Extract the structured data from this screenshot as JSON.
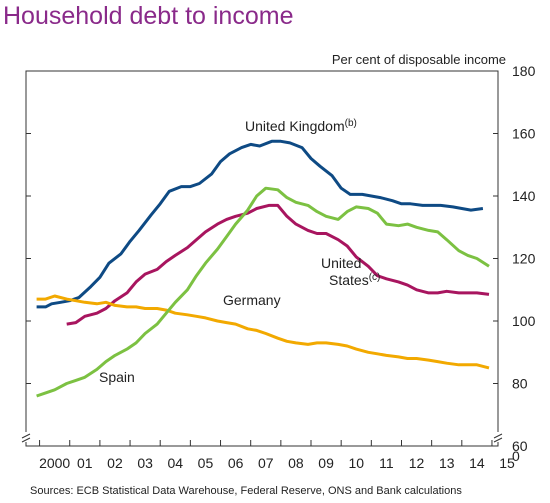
{
  "chart_data": {
    "type": "line",
    "title": "Household debt to income",
    "unit_label": "Per cent of disposable income",
    "source": "Sources: ECB Statistical Data Warehouse, Federal Reserve, ONS and Bank calculations",
    "x_tick_labels": [
      "2000",
      "01",
      "02",
      "03",
      "04",
      "05",
      "06",
      "07",
      "08",
      "09",
      "10",
      "11",
      "12",
      "13",
      "14",
      "15"
    ],
    "y_ticks": [
      180,
      160,
      140,
      120,
      100,
      80,
      60
    ],
    "y_axis_zero_label": "0",
    "ylim": [
      60,
      180
    ],
    "xlim": [
      1999.55,
      2015.2
    ],
    "axis_side": "right",
    "grid": false,
    "series": [
      {
        "name": "United Kingdom",
        "label_suffix": "(b)",
        "color": "#0e4a84",
        "points": [
          [
            1999.9,
            104.5
          ],
          [
            2000.2,
            104.5
          ],
          [
            2000.4,
            105.5
          ],
          [
            2000.7,
            106
          ],
          [
            2001.0,
            106.5
          ],
          [
            2001.3,
            107.5
          ],
          [
            2001.7,
            111
          ],
          [
            2002.0,
            114
          ],
          [
            2002.3,
            118.5
          ],
          [
            2002.7,
            121.5
          ],
          [
            2003.0,
            125.5
          ],
          [
            2003.3,
            129
          ],
          [
            2003.7,
            134
          ],
          [
            2004.0,
            137.5
          ],
          [
            2004.3,
            141.5
          ],
          [
            2004.7,
            143
          ],
          [
            2005.0,
            143
          ],
          [
            2005.3,
            144
          ],
          [
            2005.7,
            147
          ],
          [
            2006.0,
            151
          ],
          [
            2006.3,
            153.5
          ],
          [
            2006.7,
            155.5
          ],
          [
            2007.0,
            156.5
          ],
          [
            2007.3,
            156
          ],
          [
            2007.7,
            157.5
          ],
          [
            2008.0,
            157.5
          ],
          [
            2008.3,
            157
          ],
          [
            2008.7,
            155.5
          ],
          [
            2009.0,
            152
          ],
          [
            2009.3,
            149.5
          ],
          [
            2009.7,
            146.5
          ],
          [
            2010.0,
            142.5
          ],
          [
            2010.3,
            140.5
          ],
          [
            2010.7,
            140.5
          ],
          [
            2011.0,
            140
          ],
          [
            2011.3,
            139.5
          ],
          [
            2011.7,
            138.5
          ],
          [
            2012.0,
            137.5
          ],
          [
            2012.3,
            137.5
          ],
          [
            2012.7,
            137
          ],
          [
            2013.0,
            137
          ],
          [
            2013.3,
            137
          ],
          [
            2013.7,
            136.5
          ],
          [
            2014.0,
            136
          ],
          [
            2014.3,
            135.5
          ],
          [
            2014.7,
            136
          ]
        ]
      },
      {
        "name": "United States",
        "label_suffix": "(c)",
        "color": "#a8155f",
        "points": [
          [
            2000.9,
            99
          ],
          [
            2001.2,
            99.5
          ],
          [
            2001.5,
            101.5
          ],
          [
            2001.9,
            102.5
          ],
          [
            2002.2,
            104
          ],
          [
            2002.5,
            106.5
          ],
          [
            2002.9,
            109
          ],
          [
            2003.2,
            112.5
          ],
          [
            2003.5,
            115
          ],
          [
            2003.9,
            116.5
          ],
          [
            2004.2,
            119
          ],
          [
            2004.5,
            121
          ],
          [
            2004.9,
            123.5
          ],
          [
            2005.2,
            126
          ],
          [
            2005.5,
            128.5
          ],
          [
            2005.9,
            131
          ],
          [
            2006.2,
            132.5
          ],
          [
            2006.5,
            133.5
          ],
          [
            2006.9,
            134.5
          ],
          [
            2007.2,
            136
          ],
          [
            2007.6,
            137
          ],
          [
            2007.9,
            137
          ],
          [
            2008.2,
            133.5
          ],
          [
            2008.5,
            131
          ],
          [
            2008.9,
            129
          ],
          [
            2009.2,
            128
          ],
          [
            2009.5,
            128
          ],
          [
            2009.9,
            126
          ],
          [
            2010.2,
            124
          ],
          [
            2010.5,
            120.5
          ],
          [
            2010.9,
            117.5
          ],
          [
            2011.2,
            114.5
          ],
          [
            2011.5,
            113.5
          ],
          [
            2011.9,
            112.5
          ],
          [
            2012.2,
            111.5
          ],
          [
            2012.5,
            110
          ],
          [
            2012.9,
            109
          ],
          [
            2013.2,
            109
          ],
          [
            2013.5,
            109.5
          ],
          [
            2013.9,
            109
          ],
          [
            2014.2,
            109
          ],
          [
            2014.5,
            109
          ],
          [
            2014.9,
            108.5
          ]
        ]
      },
      {
        "name": "Germany",
        "color": "#f2a900",
        "points": [
          [
            1999.9,
            107
          ],
          [
            2000.2,
            107
          ],
          [
            2000.5,
            108
          ],
          [
            2000.9,
            107
          ],
          [
            2001.2,
            106.5
          ],
          [
            2001.5,
            106
          ],
          [
            2001.9,
            105.5
          ],
          [
            2002.2,
            106
          ],
          [
            2002.5,
            105
          ],
          [
            2002.9,
            104.5
          ],
          [
            2003.2,
            104.5
          ],
          [
            2003.5,
            104
          ],
          [
            2003.9,
            104
          ],
          [
            2004.2,
            103.5
          ],
          [
            2004.5,
            102.5
          ],
          [
            2004.9,
            102
          ],
          [
            2005.2,
            101.5
          ],
          [
            2005.5,
            101
          ],
          [
            2005.9,
            100
          ],
          [
            2006.2,
            99.5
          ],
          [
            2006.5,
            99
          ],
          [
            2006.9,
            97.5
          ],
          [
            2007.2,
            97
          ],
          [
            2007.5,
            96
          ],
          [
            2007.9,
            94.5
          ],
          [
            2008.2,
            93.5
          ],
          [
            2008.5,
            93
          ],
          [
            2008.9,
            92.5
          ],
          [
            2009.2,
            93
          ],
          [
            2009.5,
            93
          ],
          [
            2009.9,
            92.5
          ],
          [
            2010.2,
            92
          ],
          [
            2010.5,
            91
          ],
          [
            2010.9,
            90
          ],
          [
            2011.2,
            89.5
          ],
          [
            2011.5,
            89
          ],
          [
            2011.9,
            88.5
          ],
          [
            2012.2,
            88
          ],
          [
            2012.5,
            88
          ],
          [
            2012.9,
            87.5
          ],
          [
            2013.2,
            87
          ],
          [
            2013.5,
            86.5
          ],
          [
            2013.9,
            86
          ],
          [
            2014.2,
            86
          ],
          [
            2014.5,
            86
          ],
          [
            2014.9,
            85
          ]
        ]
      },
      {
        "name": "Spain",
        "color": "#7cc142",
        "points": [
          [
            1999.9,
            76
          ],
          [
            2000.2,
            77
          ],
          [
            2000.5,
            78
          ],
          [
            2000.9,
            80
          ],
          [
            2001.2,
            81
          ],
          [
            2001.5,
            82
          ],
          [
            2001.9,
            84.5
          ],
          [
            2002.2,
            87
          ],
          [
            2002.5,
            89
          ],
          [
            2002.9,
            91
          ],
          [
            2003.2,
            93
          ],
          [
            2003.5,
            96
          ],
          [
            2003.9,
            99
          ],
          [
            2004.2,
            102.5
          ],
          [
            2004.5,
            106
          ],
          [
            2004.9,
            110
          ],
          [
            2005.2,
            114.5
          ],
          [
            2005.5,
            118.5
          ],
          [
            2005.9,
            123
          ],
          [
            2006.2,
            127
          ],
          [
            2006.5,
            131
          ],
          [
            2006.9,
            135.5
          ],
          [
            2007.2,
            140
          ],
          [
            2007.5,
            142.5
          ],
          [
            2007.9,
            142
          ],
          [
            2008.2,
            139.5
          ],
          [
            2008.5,
            138
          ],
          [
            2008.9,
            137
          ],
          [
            2009.2,
            135
          ],
          [
            2009.5,
            133.5
          ],
          [
            2009.9,
            132.5
          ],
          [
            2010.2,
            135
          ],
          [
            2010.5,
            136.5
          ],
          [
            2010.9,
            136
          ],
          [
            2011.2,
            134.5
          ],
          [
            2011.5,
            131
          ],
          [
            2011.9,
            130.5
          ],
          [
            2012.2,
            131
          ],
          [
            2012.5,
            130
          ],
          [
            2012.9,
            129
          ],
          [
            2013.2,
            128.5
          ],
          [
            2013.5,
            126
          ],
          [
            2013.9,
            122.5
          ],
          [
            2014.2,
            121
          ],
          [
            2014.5,
            120
          ],
          [
            2014.9,
            117.5
          ]
        ]
      }
    ]
  }
}
